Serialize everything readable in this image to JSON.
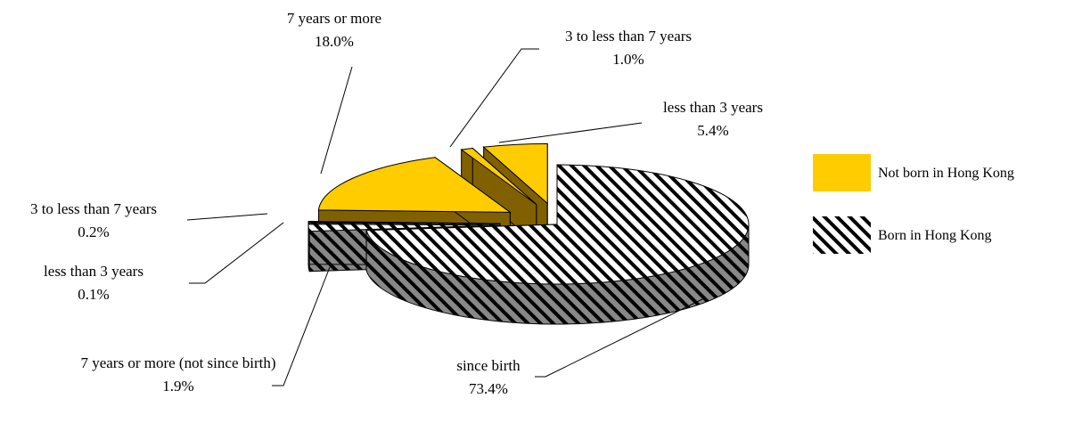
{
  "chart_data": {
    "type": "pie3d",
    "series": [
      {
        "name": "Not born in Hong Kong",
        "color": "#ffcc00",
        "side_color": "#806000",
        "categories": [
          "7 years or more",
          "3 to less than 7 years",
          "less than 3 years"
        ],
        "values": [
          18.0,
          1.0,
          5.4
        ],
        "value_labels": [
          "18.0%",
          "1.0%",
          "5.4%"
        ]
      },
      {
        "name": "Born in Hong Kong",
        "color": "#000000",
        "pattern": "diagonal-hatch",
        "categories": [
          "since birth",
          "7 years or more (not since birth)",
          "3 to less than 7 years",
          "less than 3 years"
        ],
        "values": [
          73.4,
          1.9,
          0.2,
          0.1
        ],
        "value_labels": [
          "73.4%",
          "1.9%",
          "0.2%",
          "0.1%"
        ]
      }
    ],
    "legend": "right"
  }
}
